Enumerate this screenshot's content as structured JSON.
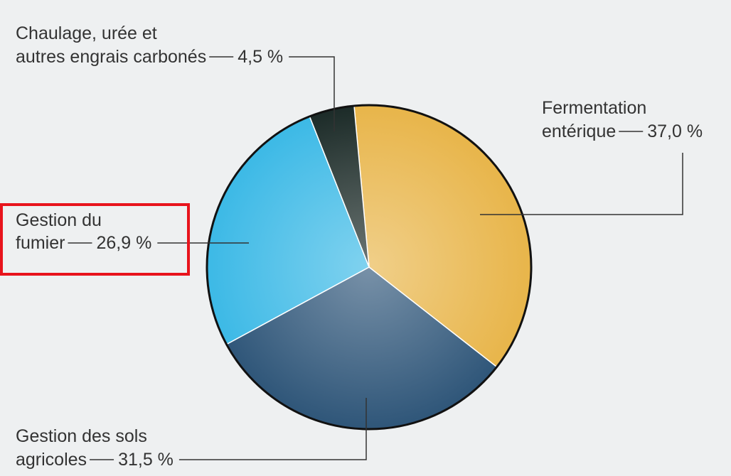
{
  "chart_data": {
    "type": "pie",
    "categories": [
      [
        "Fermentation",
        "entérique"
      ],
      [
        "Gestion des sols",
        "agricoles"
      ],
      [
        "Gestion du",
        "fumier"
      ],
      [
        "Chaulage, urée et",
        "autres engrais carbonés"
      ]
    ],
    "values": [
      37.0,
      31.5,
      26.9,
      4.5
    ],
    "value_labels": [
      "37,0 %",
      "31,5 %",
      "26,9 %",
      "4,5 %"
    ],
    "colors": [
      "#e8b54a",
      "#2f5679",
      "#3cb9e6",
      "#1c2b28"
    ]
  }
}
